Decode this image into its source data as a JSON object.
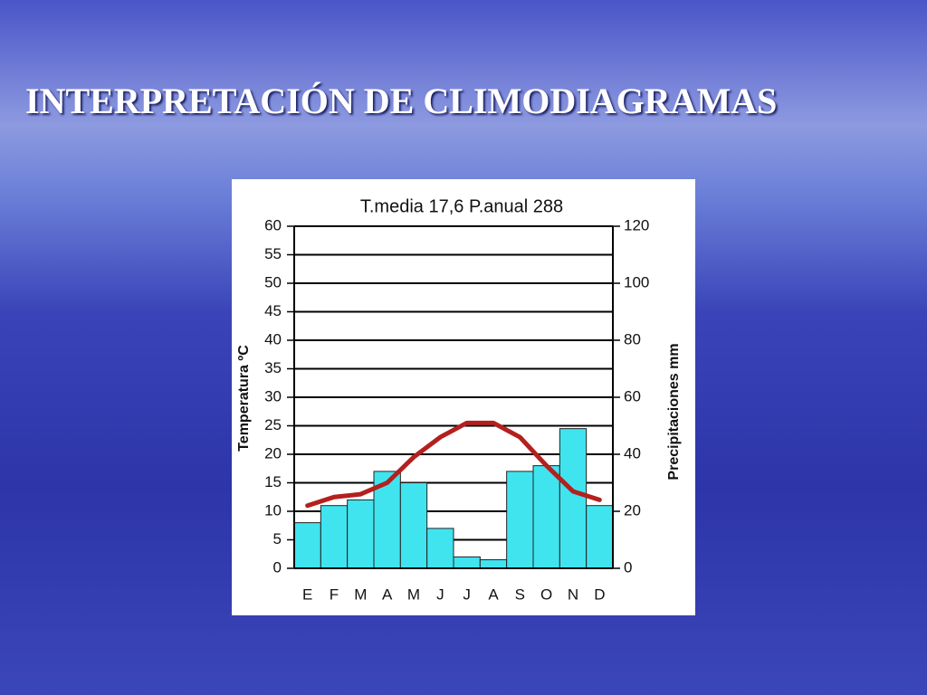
{
  "slide_title": "INTERPRETACIÓN DE CLIMODIAGRAMAS",
  "chart_data": {
    "type": "bar",
    "title": "T.media 17,6    P.anual 288",
    "ylabel": "Temperatura ºC",
    "y2label": "Precipitaciones mm",
    "categories": [
      "E",
      "F",
      "M",
      "A",
      "M",
      "J",
      "J",
      "A",
      "S",
      "O",
      "N",
      "D"
    ],
    "series": [
      {
        "type": "bar",
        "axis": "y2",
        "color": "#40e4ef",
        "values": [
          16,
          22,
          24,
          34,
          30,
          14,
          4,
          3,
          34,
          36,
          49,
          22
        ]
      },
      {
        "type": "line",
        "axis": "y",
        "color": "#b3201e",
        "values": [
          11,
          12.5,
          13,
          15,
          19.5,
          23,
          25.5,
          25.5,
          23,
          18,
          13.5,
          12
        ]
      }
    ],
    "ylim": [
      0,
      60
    ],
    "yticks": [
      0,
      5,
      10,
      15,
      20,
      25,
      30,
      35,
      40,
      45,
      50,
      55,
      60
    ],
    "y2lim": [
      0,
      120
    ],
    "y2ticks": [
      0,
      20,
      40,
      60,
      80,
      100,
      120
    ],
    "grid": true
  }
}
